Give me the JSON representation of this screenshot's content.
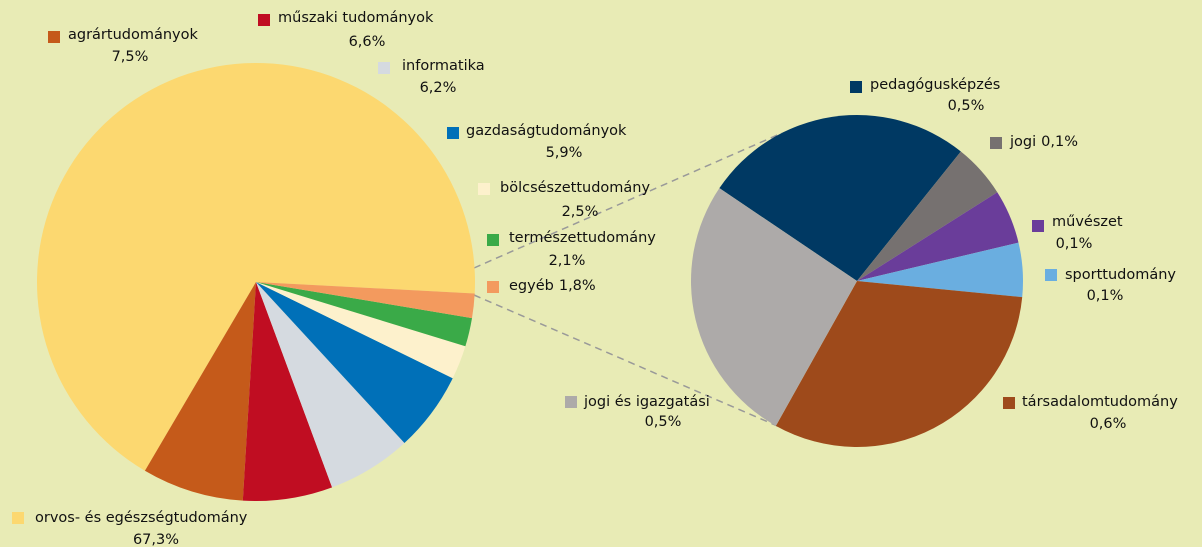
{
  "chart_data": [
    {
      "type": "pie",
      "categories": [
        "orvos- és egészségtudomány",
        "agrártudományok",
        "műszaki tudományok",
        "informatika",
        "gazdaságtudományok",
        "bölcsészettudomány",
        "természettudomány",
        "egyéb"
      ],
      "values": [
        67.3,
        7.5,
        6.6,
        6.2,
        5.9,
        2.5,
        2.1,
        1.8
      ],
      "value_labels": [
        "67,3%",
        "7,5%",
        "6,6%",
        "6,2%",
        "5,9%",
        "2,5%",
        "2,1%",
        "1,8%"
      ],
      "colors": [
        "#fcd870",
        "#c55a1a",
        "#c00d22",
        "#d5dae0",
        "#0070b8",
        "#fdf1cc",
        "#3aaa48",
        "#f39a5e"
      ]
    },
    {
      "type": "pie",
      "categories": [
        "pedagógusképzés",
        "jogi",
        "művészet",
        "sporttudomány",
        "társadalomtudomány",
        "jogi és igazgatási"
      ],
      "values": [
        0.5,
        0.1,
        0.1,
        0.1,
        0.6,
        0.5
      ],
      "value_labels": [
        "0,5%",
        "0,1%",
        "0,1%",
        "0,1%",
        "0,6%",
        "0,5%"
      ],
      "colors": [
        "#003963",
        "#767170",
        "#6a3d9a",
        "#6aaee0",
        "#9e4a1b",
        "#adaaa9"
      ]
    }
  ]
}
